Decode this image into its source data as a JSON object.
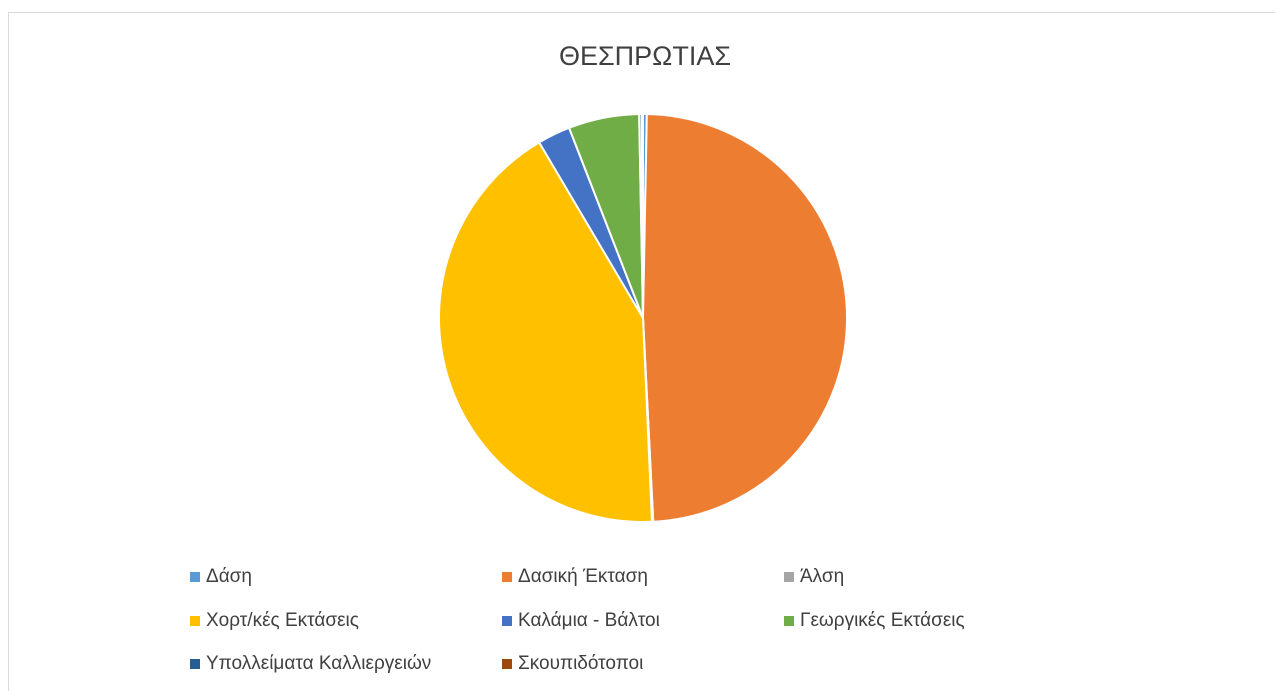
{
  "chart_data": {
    "type": "pie",
    "title": "ΘΕΣΠΡΩΤΙΑΣ",
    "categories": [
      "Δάση",
      "Δασική Έκταση",
      "Άλση",
      "Χορτ/κές Εκτάσεις",
      "Καλάμια - Βάλτοι",
      " Γεωργικές Εκτάσεις",
      " Υπολλείματα Καλλιεργειών",
      "Σκουπιδότοποι"
    ],
    "values": [
      0.3,
      48.9,
      0.1,
      42.2,
      2.6,
      5.6,
      0.2,
      0.1
    ],
    "colors": [
      "#5b9bd5",
      "#ed7d31",
      "#a5a5a5",
      "#ffc000",
      "#4472c4",
      "#70ad47",
      "#255e91",
      "#9e480e"
    ],
    "legend": "bottom"
  }
}
